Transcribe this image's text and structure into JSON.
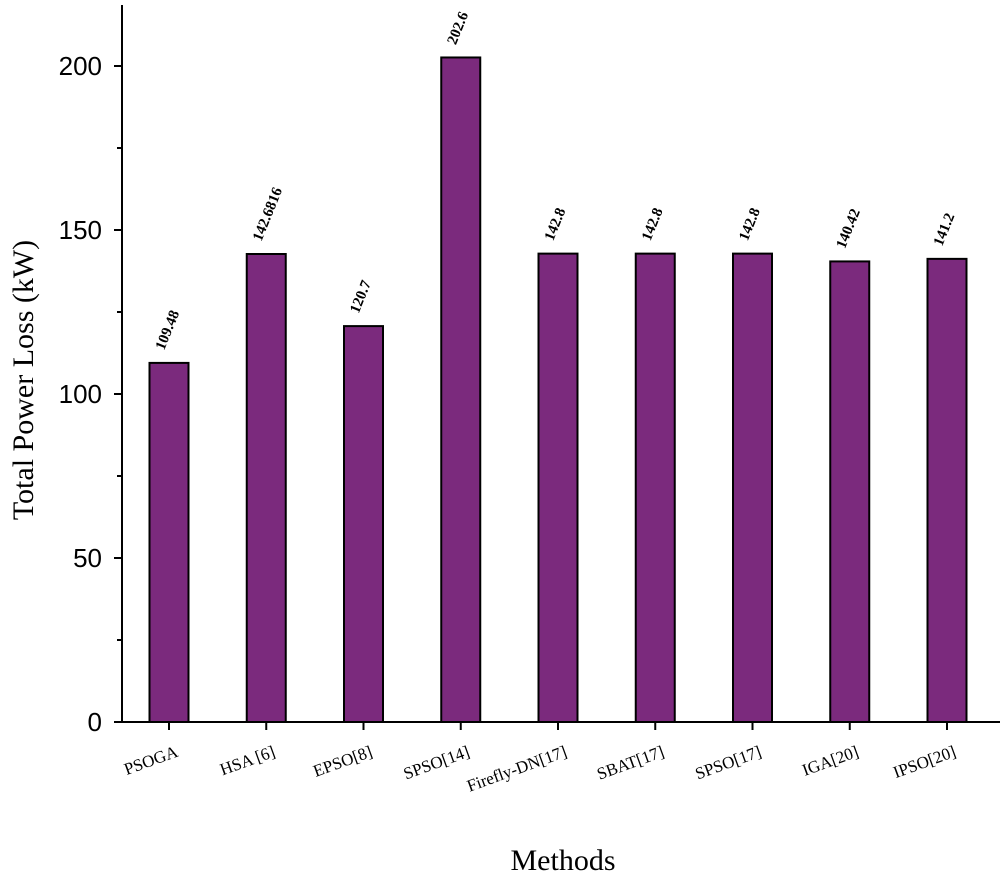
{
  "chart_data": {
    "type": "bar",
    "title": "",
    "xlabel": "Methods",
    "ylabel": "Total Power Loss (kW)",
    "categories": [
      "PSOGA",
      "HSA [6]",
      "EPSO[8]",
      "SPSO[14]",
      "Firefly-DN[17]",
      "SBAT[17]",
      "SPSO[17]",
      "IGA[20]",
      "IPSO[20]"
    ],
    "values": [
      109.48,
      142.6816,
      120.7,
      202.6,
      142.8,
      142.8,
      142.8,
      140.42,
      141.2
    ],
    "value_labels": [
      "109.48",
      "142.6816",
      "120.7",
      "202.6",
      "142.8",
      "142.8",
      "142.8",
      "140.42",
      "141.2"
    ],
    "ylim": [
      0,
      218
    ],
    "yticks": [
      0,
      50,
      100,
      150,
      200
    ],
    "bar_color": "#7b2a7d",
    "grid": false,
    "legend": "none"
  }
}
